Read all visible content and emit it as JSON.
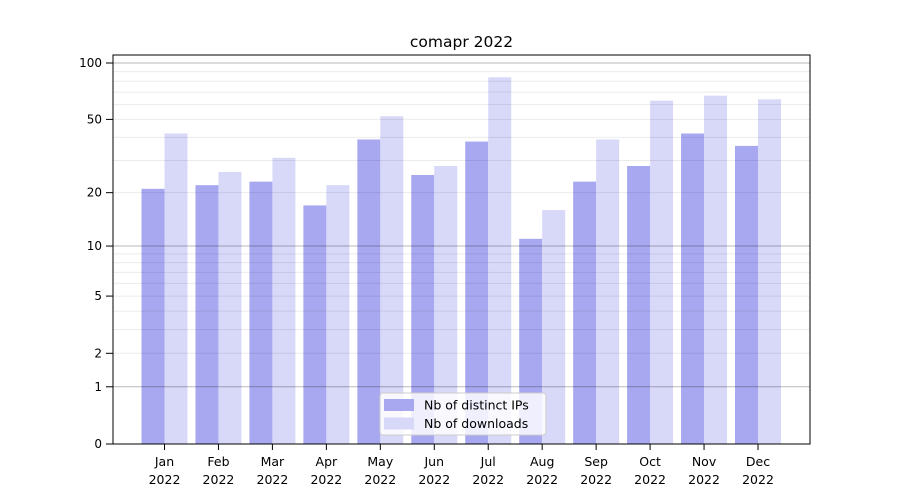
{
  "chart_data": {
    "type": "bar",
    "title": "comapr 2022",
    "categories": [
      {
        "month": "Jan",
        "year": "2022"
      },
      {
        "month": "Feb",
        "year": "2022"
      },
      {
        "month": "Mar",
        "year": "2022"
      },
      {
        "month": "Apr",
        "year": "2022"
      },
      {
        "month": "May",
        "year": "2022"
      },
      {
        "month": "Jun",
        "year": "2022"
      },
      {
        "month": "Jul",
        "year": "2022"
      },
      {
        "month": "Aug",
        "year": "2022"
      },
      {
        "month": "Sep",
        "year": "2022"
      },
      {
        "month": "Oct",
        "year": "2022"
      },
      {
        "month": "Nov",
        "year": "2022"
      },
      {
        "month": "Dec",
        "year": "2022"
      }
    ],
    "series": [
      {
        "name": "Nb of distinct IPs",
        "color": "#a8a8f0",
        "values": [
          21,
          22,
          23,
          17,
          39,
          25,
          38,
          11,
          23,
          28,
          42,
          36
        ]
      },
      {
        "name": "Nb of downloads",
        "color": "#d8d8f8",
        "values": [
          42,
          26,
          31,
          22,
          52,
          28,
          84,
          16,
          39,
          63,
          67,
          64
        ]
      }
    ],
    "y_axis": {
      "scale": "log1p",
      "ticks": [
        0,
        1,
        2,
        5,
        10,
        20,
        50,
        100
      ],
      "major_gridlines": [
        1,
        10,
        100
      ],
      "minor_gridlines": [
        2,
        3,
        4,
        5,
        6,
        7,
        8,
        9,
        20,
        30,
        40,
        50,
        60,
        70,
        80,
        90
      ],
      "ylim": [
        0,
        110
      ]
    },
    "legend": {
      "position": "bottom-center"
    },
    "grid": "horizontal",
    "colors": {
      "axis": "#000000",
      "major_grid": "rgba(0,0,0,0.28)",
      "minor_grid": "rgba(0,0,0,0.08)",
      "legend_border": "#cccccc",
      "legend_bg": "rgba(255,255,255,0.82)"
    }
  }
}
